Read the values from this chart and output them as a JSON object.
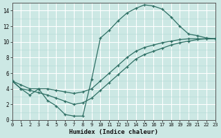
{
  "xlabel": "Humidex (Indice chaleur)",
  "bg_color": "#cce8e4",
  "line_color": "#2d6e63",
  "grid_major_color": "#ffffff",
  "grid_minor_color": "#b0d8d4",
  "line1_x": [
    0,
    1,
    2,
    3,
    4,
    5,
    6,
    7,
    8,
    9,
    10,
    11,
    12,
    13,
    14,
    15,
    16,
    17,
    18,
    19,
    20,
    21,
    22,
    23
  ],
  "line1_y": [
    5,
    4.0,
    3.2,
    4.0,
    2.5,
    1.8,
    0.7,
    0.5,
    0.5,
    5.2,
    10.5,
    11.5,
    12.7,
    13.7,
    14.3,
    14.75,
    14.6,
    14.2,
    13.2,
    12.0,
    11.0,
    10.8,
    10.5,
    10.4
  ],
  "line2_x": [
    0,
    1,
    2,
    3,
    4,
    5,
    6,
    7,
    8,
    9,
    10,
    11,
    12,
    13,
    14,
    15,
    16,
    17,
    18,
    19,
    20,
    21,
    22,
    23
  ],
  "line2_y": [
    5,
    4.5,
    4.0,
    4.0,
    4.0,
    3.8,
    3.6,
    3.4,
    3.6,
    4.0,
    5.0,
    6.0,
    7.0,
    8.0,
    8.8,
    9.3,
    9.6,
    9.9,
    10.1,
    10.3,
    10.4,
    10.4,
    10.4,
    10.4
  ],
  "line3_x": [
    0,
    1,
    2,
    3,
    4,
    5,
    6,
    7,
    8,
    9,
    10,
    11,
    12,
    13,
    14,
    15,
    16,
    17,
    18,
    19,
    20,
    21,
    22,
    23
  ],
  "line3_y": [
    5,
    4.0,
    3.8,
    3.5,
    3.2,
    2.8,
    2.4,
    2.0,
    2.2,
    2.8,
    3.8,
    4.8,
    5.8,
    6.8,
    7.8,
    8.4,
    8.8,
    9.2,
    9.6,
    9.9,
    10.1,
    10.3,
    10.4,
    10.4
  ],
  "xlim": [
    0,
    23
  ],
  "ylim": [
    0,
    15
  ],
  "xticks": [
    0,
    1,
    2,
    3,
    4,
    5,
    6,
    7,
    8,
    9,
    10,
    11,
    12,
    13,
    14,
    15,
    16,
    17,
    18,
    19,
    20,
    21,
    22,
    23
  ],
  "yticks": [
    0,
    2,
    4,
    6,
    8,
    10,
    12,
    14
  ]
}
